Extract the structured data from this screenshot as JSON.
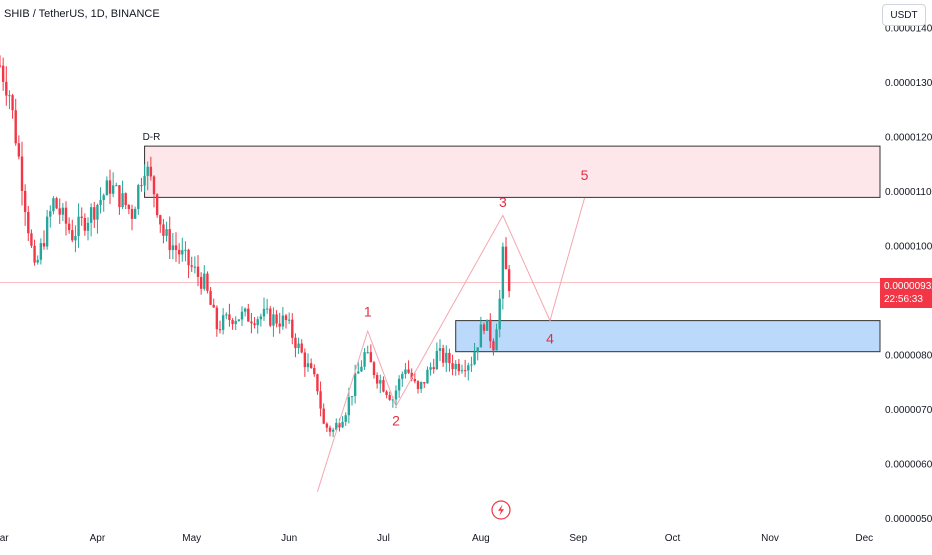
{
  "header": {
    "title": "SHIB / TetherUS, 1D, BINANCE"
  },
  "toolbar": {
    "currency_label": "USDT"
  },
  "price_tag": {
    "price": "0.00000932",
    "countdown": "22:56:33"
  },
  "colors": {
    "up": "#26a69a",
    "down": "#f23645",
    "supply_zone": "#fde7eb",
    "demand_zone": "#bbd9fb",
    "wave_label": "#e02e44"
  },
  "chart_data": {
    "type": "candlestick",
    "title": "SHIB / TetherUS, 1D, BINANCE",
    "x_range": [
      "2024-03-01",
      "2024-12-06"
    ],
    "y_range": [
      5e-06,
      1.45e-05
    ],
    "y_ticks": [
      "0.00001400",
      "0.00001300",
      "0.00001200",
      "0.00001100",
      "0.00001000",
      "0.00000800",
      "0.00000700",
      "0.00000600",
      "0.00000500"
    ],
    "x_ticks": [
      "Mar",
      "Apr",
      "May",
      "Jun",
      "Jul",
      "Aug",
      "Sep",
      "Oct",
      "Nov",
      "Dec"
    ],
    "last_price": 9.32e-06,
    "price_line": 9.32e-06,
    "waypoints": [
      [
        "2024-03-01",
        1.33e-05
      ],
      [
        "2024-03-04",
        1.28e-05
      ],
      [
        "2024-03-08",
        1.12e-05
      ],
      [
        "2024-03-12",
        9.5e-06
      ],
      [
        "2024-03-18",
        1.08e-05
      ],
      [
        "2024-03-24",
        1.02e-05
      ],
      [
        "2024-03-30",
        1.06e-05
      ],
      [
        "2024-04-05",
        1.11e-05
      ],
      [
        "2024-04-12",
        1.06e-05
      ],
      [
        "2024-04-16",
        1.15e-05
      ],
      [
        "2024-04-19",
        1.1e-05
      ],
      [
        "2024-04-22",
        1.02e-05
      ],
      [
        "2024-04-28",
        9.8e-06
      ],
      [
        "2024-05-05",
        9.3e-06
      ],
      [
        "2024-05-09",
        8.5e-06
      ],
      [
        "2024-05-14",
        8.7e-06
      ],
      [
        "2024-05-24",
        8.7e-06
      ],
      [
        "2024-05-31",
        8.6e-06
      ],
      [
        "2024-06-05",
        8e-06
      ],
      [
        "2024-06-10",
        7.4e-06
      ],
      [
        "2024-06-12",
        6.7e-06
      ],
      [
        "2024-06-15",
        6.6e-06
      ],
      [
        "2024-06-19",
        7e-06
      ],
      [
        "2024-06-25",
        8e-06
      ],
      [
        "2024-06-29",
        7.6e-06
      ],
      [
        "2024-07-04",
        7.2e-06
      ],
      [
        "2024-07-08",
        7.8e-06
      ],
      [
        "2024-07-12",
        7.3e-06
      ],
      [
        "2024-07-18",
        8e-06
      ],
      [
        "2024-07-24",
        7.8e-06
      ],
      [
        "2024-07-29",
        7.9e-06
      ],
      [
        "2024-08-02",
        8.6e-06
      ],
      [
        "2024-08-05",
        8.2e-06
      ],
      [
        "2024-08-07",
        9e-06
      ],
      [
        "2024-08-08",
        9.8e-06
      ],
      [
        "2024-08-09",
        9.5e-06
      ],
      [
        "2024-08-10",
        9.3e-06
      ]
    ],
    "zones": [
      {
        "name": "supply",
        "from": "2024-04-16",
        "to": "2024-12-06",
        "y_low": 1.088e-05,
        "y_high": 1.182e-05
      },
      {
        "name": "demand",
        "from": "2024-07-24",
        "to": "2024-12-06",
        "y_low": 8.05e-06,
        "y_high": 8.62e-06
      }
    ],
    "zone_label": "D-R",
    "wave_path": [
      [
        "2024-06-10",
        5.48e-06
      ],
      [
        "2024-06-26",
        8.43e-06
      ],
      [
        "2024-07-05",
        7.05e-06
      ],
      [
        "2024-08-08",
        1.055e-05
      ],
      [
        "2024-08-23",
        8.62e-06
      ],
      [
        "2024-09-03",
        1.087e-05
      ]
    ],
    "wave_labels": [
      {
        "text": "1",
        "x": "2024-06-26",
        "y": 8.7e-06
      },
      {
        "text": "2",
        "x": "2024-07-05",
        "y": 6.7e-06
      },
      {
        "text": "3",
        "x": "2024-08-08",
        "y": 1.07e-05
      },
      {
        "text": "4",
        "x": "2024-08-23",
        "y": 8.2e-06
      },
      {
        "text": "5",
        "x": "2024-09-03",
        "y": 1.12e-05
      }
    ]
  }
}
